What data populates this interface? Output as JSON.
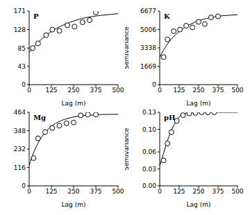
{
  "chart_data": [
    {
      "type": "scatter",
      "title": "P",
      "x_label": "Lag (m)",
      "xlim": [
        0,
        500
      ],
      "xticks": [
        0,
        125,
        250,
        375,
        500
      ],
      "ylim": [
        0,
        171
      ],
      "yticks": [
        0,
        43,
        85,
        128,
        171
      ],
      "series": [
        {
          "type": "scatter",
          "marker": "circle",
          "color": "#000000",
          "x": [
            20,
            50,
            95,
            130,
            170,
            215,
            255,
            300,
            340,
            375
          ],
          "values": [
            85,
            96,
            115,
            128,
            125,
            138,
            135,
            145,
            150,
            168
          ]
        },
        {
          "type": "line",
          "line_style": "solid",
          "color": "#000000",
          "x": [
            0,
            50,
            100,
            150,
            200,
            250,
            300,
            350,
            400,
            450,
            500
          ],
          "values": [
            75,
            98,
            116,
            130,
            140,
            148,
            154,
            158,
            161,
            163,
            165
          ]
        }
      ]
    },
    {
      "type": "scatter",
      "title": "K",
      "x_label": "Lag (m)",
      "y_label": "Semivariance",
      "xlim": [
        0,
        500
      ],
      "xticks": [
        0,
        125,
        250,
        375,
        500
      ],
      "ylim": [
        0,
        6677
      ],
      "yticks": [
        0,
        1669,
        3338,
        5006,
        6677
      ],
      "series": [
        {
          "type": "scatter",
          "marker": "circle",
          "color": "#000000",
          "x": [
            25,
            50,
            90,
            130,
            170,
            210,
            250,
            290,
            330,
            375
          ],
          "values": [
            2500,
            4100,
            4850,
            5000,
            5350,
            5200,
            5700,
            5500,
            6100,
            6200
          ]
        },
        {
          "type": "line",
          "line_style": "solid",
          "color": "#000000",
          "x": [
            0,
            50,
            100,
            150,
            200,
            250,
            300,
            350,
            400,
            450,
            500
          ],
          "values": [
            2500,
            3700,
            4500,
            5100,
            5500,
            5800,
            6000,
            6150,
            6250,
            6300,
            6350
          ]
        }
      ]
    },
    {
      "type": "scatter",
      "title": "Mg",
      "x_label": "Lag (m)",
      "xlim": [
        0,
        500
      ],
      "xticks": [
        0,
        125,
        250,
        375,
        500
      ],
      "ylim": [
        0,
        464
      ],
      "yticks": [
        0,
        116,
        232,
        348,
        464
      ],
      "series": [
        {
          "type": "scatter",
          "marker": "circle",
          "color": "#000000",
          "x": [
            25,
            50,
            90,
            130,
            170,
            210,
            250,
            290,
            330,
            375
          ],
          "values": [
            175,
            300,
            340,
            365,
            380,
            395,
            400,
            445,
            450,
            450
          ]
        },
        {
          "type": "line",
          "line_style": "solid",
          "color": "#000000",
          "x": [
            0,
            25,
            50,
            100,
            150,
            200,
            250,
            300,
            350,
            400,
            500
          ],
          "values": [
            130,
            210,
            270,
            350,
            395,
            420,
            435,
            443,
            447,
            450,
            452
          ]
        }
      ]
    },
    {
      "type": "scatter",
      "title": "pH",
      "x_label": "Lag (m)",
      "y_label": "Semivariance",
      "xlim": [
        0,
        500
      ],
      "xticks": [
        0,
        125,
        250,
        375,
        500
      ],
      "ylim": [
        0,
        0.13
      ],
      "yticks": [
        {
          "value": 0,
          "label": "0.00"
        },
        {
          "value": 0.03,
          "label": "0.03"
        },
        {
          "value": 0.06,
          "label": "0.06"
        },
        {
          "value": 0.1,
          "label": "0.10"
        },
        {
          "value": 0.13,
          "label": "0.13"
        }
      ],
      "series": [
        {
          "type": "scatter",
          "marker": "circle",
          "color": "#000000",
          "x": [
            25,
            50,
            75,
            110,
            150,
            190,
            230,
            270,
            310,
            350
          ],
          "values": [
            0.045,
            0.075,
            0.095,
            0.115,
            0.125,
            0.128,
            0.129,
            0.13,
            0.13,
            0.13
          ]
        },
        {
          "type": "line",
          "line_style": "solid",
          "color": "#000000",
          "x": [
            0,
            25,
            50,
            75,
            100,
            125,
            150,
            175,
            200,
            500
          ],
          "values": [
            0.035,
            0.058,
            0.08,
            0.098,
            0.112,
            0.122,
            0.127,
            0.129,
            0.13,
            0.13
          ]
        }
      ]
    }
  ]
}
